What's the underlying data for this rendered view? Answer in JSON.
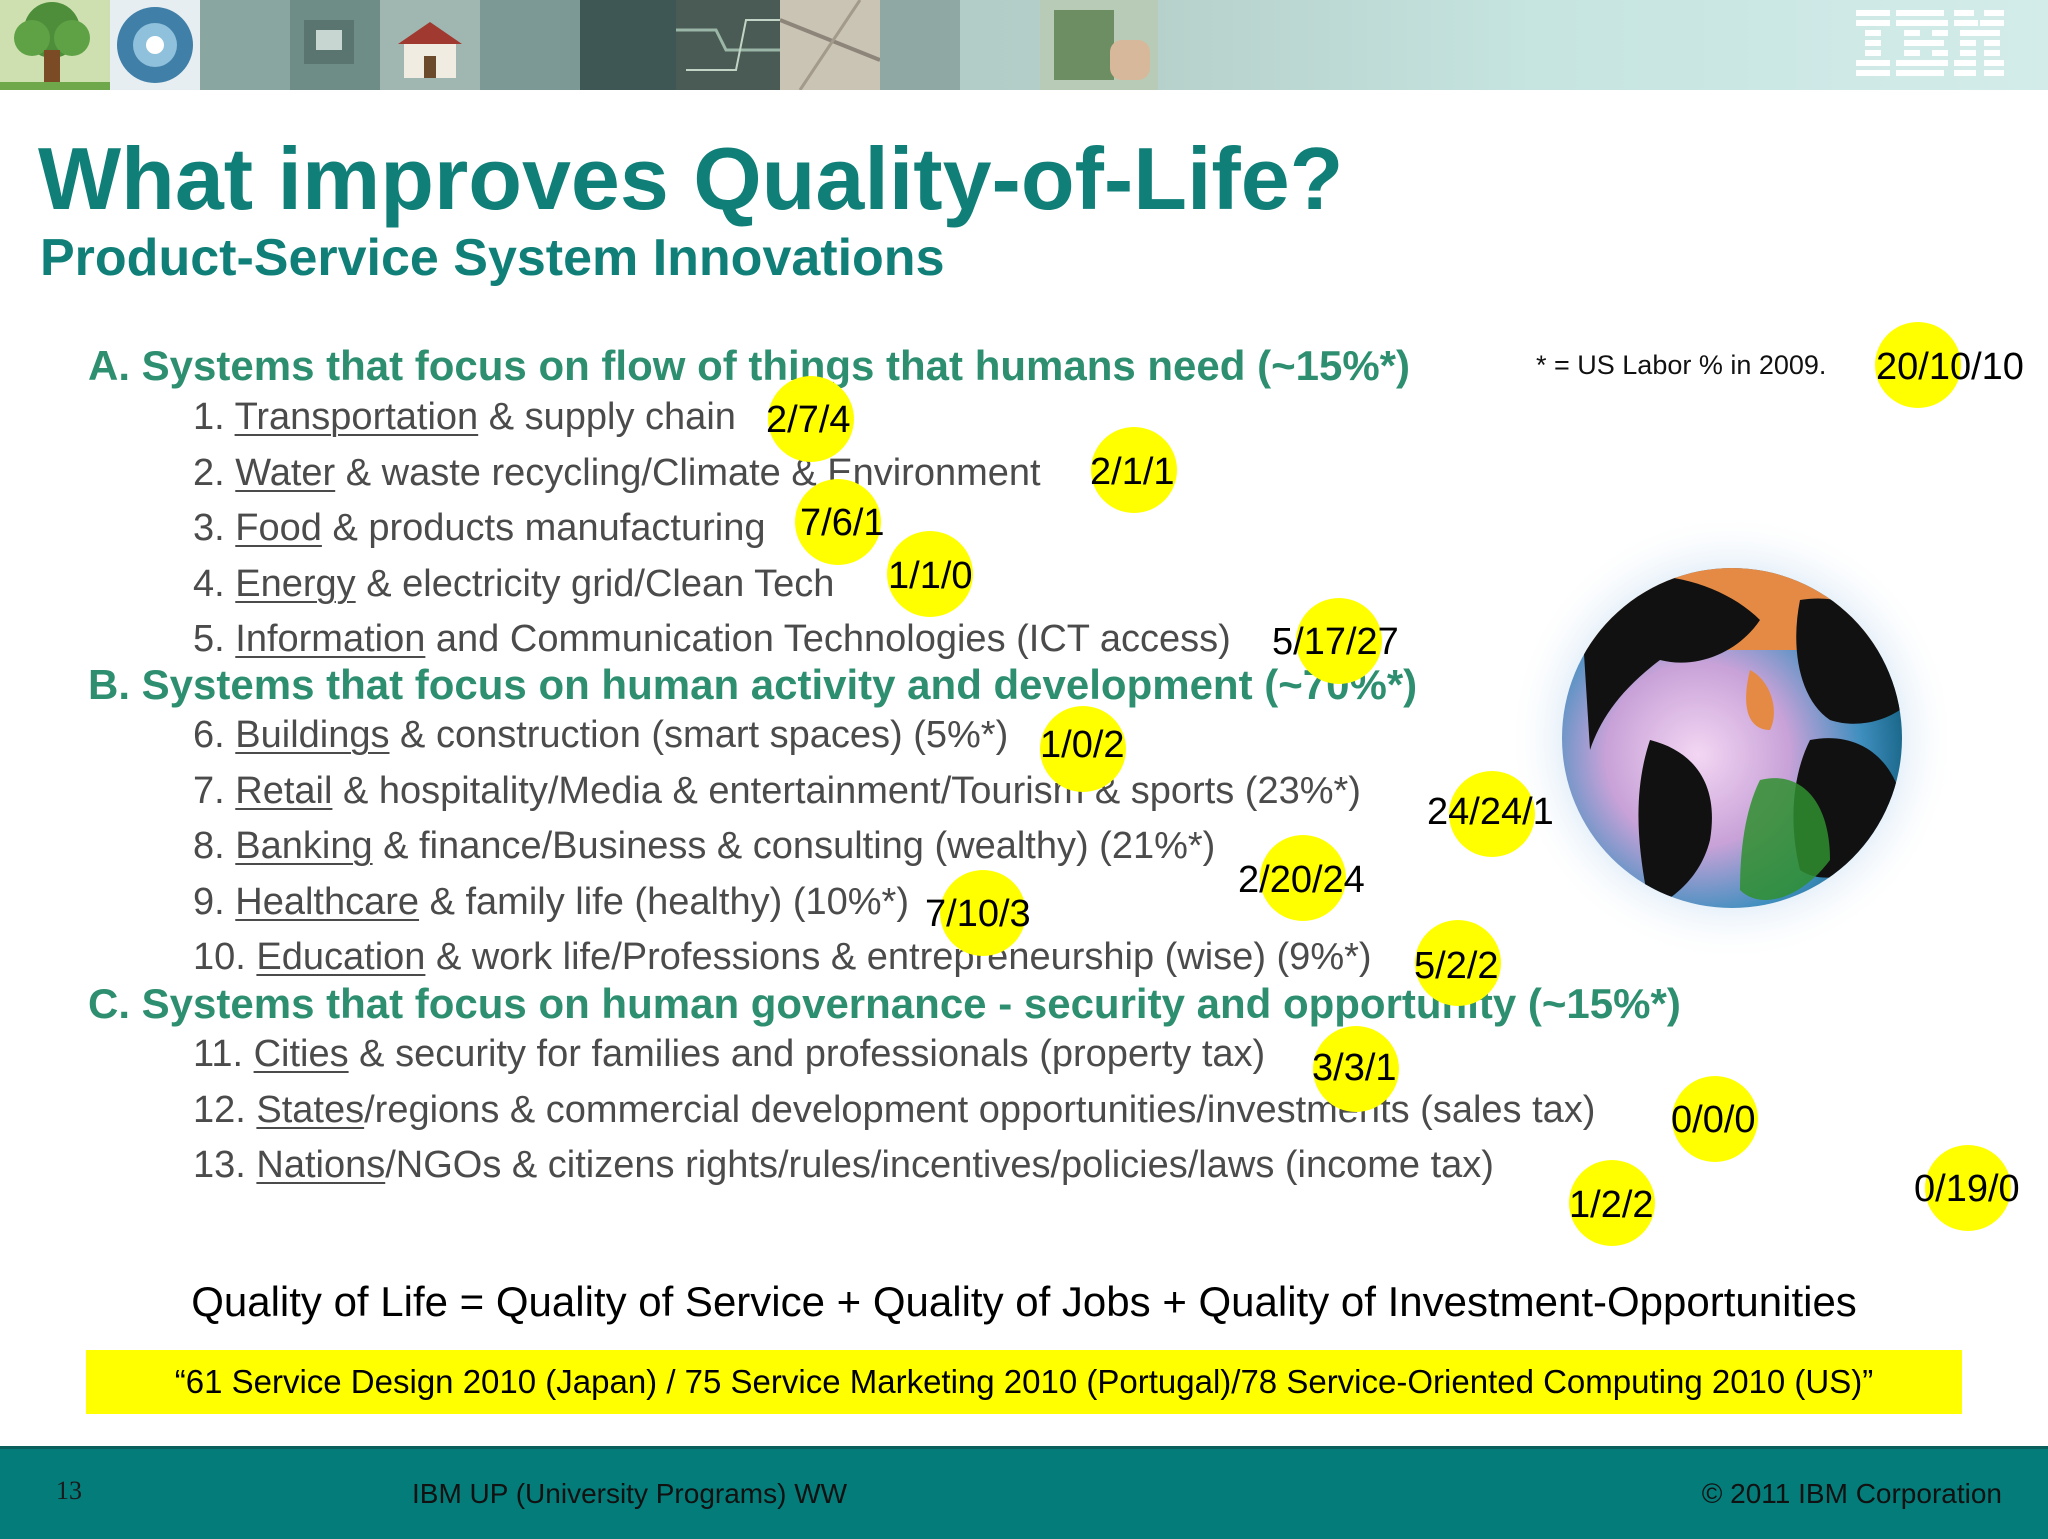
{
  "brand": {
    "logo_text": "IBM"
  },
  "title": "What improves Quality-of-Life?",
  "subtitle": "Product-Service System Innovations",
  "labor_note": "* = US Labor % in 2009.",
  "sections": {
    "a": "A. Systems that focus on flow of things that humans need (~15%*)",
    "b": "B. Systems that focus on human activity and development (~70%*)",
    "c": "C. Systems that focus on human governance - security and opportunity (~15%*)"
  },
  "items": [
    {
      "num": "1.",
      "key": "Transportation",
      "rest": " & supply chain"
    },
    {
      "num": "2.",
      "key": "Water",
      "rest": " & waste recycling/Climate & Environment"
    },
    {
      "num": "3.",
      "key": "Food",
      "rest": " & products manufacturing"
    },
    {
      "num": "4.",
      "key": "Energy",
      "rest": " & electricity grid/Clean Tech"
    },
    {
      "num": "5.",
      "key": "Information",
      "rest": " and Communication Technologies (ICT access)"
    },
    {
      "num": "6.",
      "key": "Buildings",
      "rest": " & construction (smart spaces) (5%*)"
    },
    {
      "num": "7.",
      "key": "Retail",
      "rest": " & hospitality/Media & entertainment/Tourism & sports (23%*)"
    },
    {
      "num": "8.",
      "key": "Banking",
      "rest": " & finance/Business & consulting (wealthy) (21%*)"
    },
    {
      "num": "9.",
      "key": "Healthcare",
      "rest": " & family life (healthy) (10%*)"
    },
    {
      "num": "10.",
      "key": "Education",
      "rest": " & work life/Professions & entrepreneurship (wise) (9%*)"
    },
    {
      "num": "11.",
      "key": "Cities",
      "rest": " & security for families and professionals (property tax)"
    },
    {
      "num": "12.",
      "key": "States",
      "rest": "/regions & commercial development opportunities/investments (sales tax)"
    },
    {
      "num": "13.",
      "key": "Nations",
      "rest": "/NGOs & citizens rights/rules/incentives/policies/laws (income tax)"
    }
  ],
  "marks": [
    "20/10/10",
    "2/7/4",
    "2/1/1",
    "7/6/1",
    "1/1/0",
    "5/17/27",
    "1/0/2",
    "24/24/1",
    "2/20/24",
    "7/10/3",
    "5/2/2",
    "3/3/1",
    "0/0/0",
    "1/2/2",
    "0/19/0"
  ],
  "formula": "Quality of Life = Quality of Service + Quality of Jobs + Quality of Investment-Opportunities",
  "citation": "“61 Service Design 2010 (Japan) / 75 Service Marketing 2010 (Portugal)/78 Service-Oriented Computing 2010 (US)”",
  "footer": {
    "page_number": "13",
    "program": "IBM UP (University Programs) WW",
    "copyright": "© 2011 IBM Corporation"
  }
}
